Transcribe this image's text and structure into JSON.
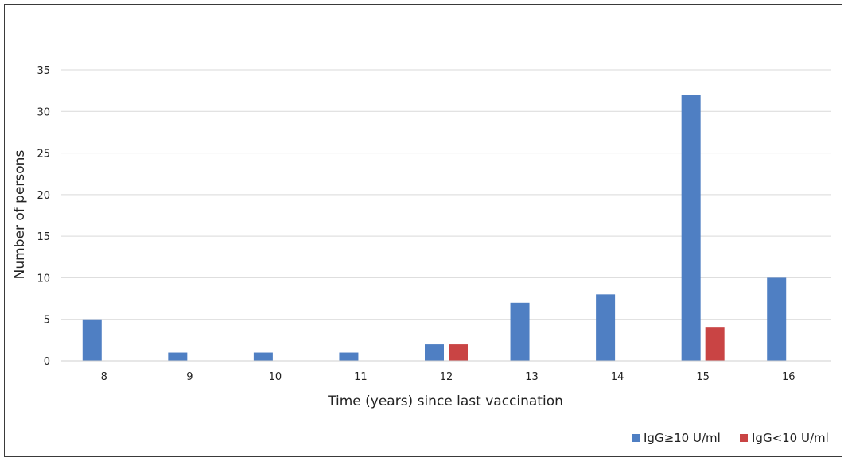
{
  "chart_data": {
    "type": "bar",
    "title": "",
    "xlabel": "Time (years) since last vaccination",
    "ylabel": "Number of persons",
    "categories": [
      "8",
      "9",
      "10",
      "11",
      "12",
      "13",
      "14",
      "15",
      "16"
    ],
    "series": [
      {
        "name": "IgG≥10 U/ml",
        "color": "#4f7fc3",
        "values": [
          5,
          1,
          1,
          1,
          2,
          7,
          8,
          32,
          10
        ]
      },
      {
        "name": "IgG<10 U/ml",
        "color": "#c94444",
        "values": [
          0,
          0,
          0,
          0,
          2,
          0,
          0,
          4,
          0
        ]
      }
    ],
    "ylim": [
      0,
      35
    ],
    "yticks": [
      "0",
      "5",
      "10",
      "15",
      "20",
      "25",
      "30",
      "35"
    ],
    "grid": true,
    "legend_position": "bottom-right"
  }
}
